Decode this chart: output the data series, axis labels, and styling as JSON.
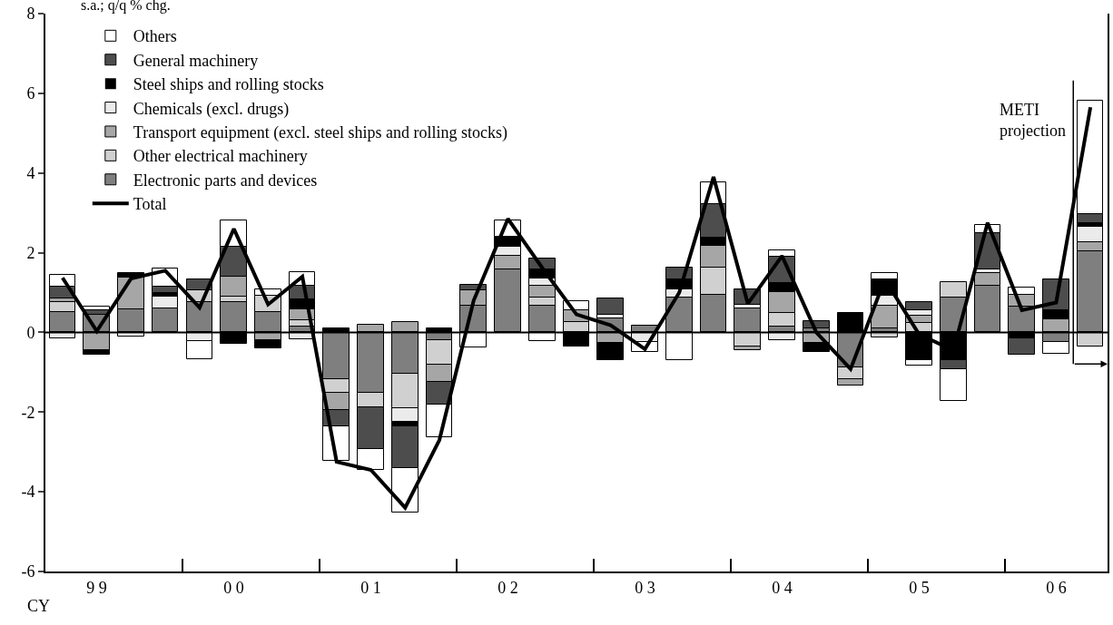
{
  "chart_data": {
    "type": "bar",
    "stacked": true,
    "ylabel": "s.a.; q/q % chg.",
    "xlabel": "CY",
    "categories": [
      null,
      "9 9",
      null,
      null,
      null,
      "0 0",
      null,
      null,
      null,
      "0 1",
      null,
      null,
      null,
      "0 2",
      null,
      null,
      null,
      "0 3",
      null,
      null,
      null,
      "0 4",
      null,
      null,
      null,
      "0 5",
      null,
      null,
      null,
      "0 6",
      null
    ],
    "annotations": [
      "METI\nprojection"
    ],
    "ylim": [
      -6,
      8
    ],
    "yticks": [
      -6,
      -4,
      -2,
      0,
      2,
      4,
      6,
      8
    ],
    "legend": "top left",
    "ref_lines": [
      {
        "axis": "y",
        "value": 0,
        "color": "#000000"
      }
    ],
    "series": [
      {
        "name": "Electronic parts and devices",
        "color": "#7f7f7f",
        "values": [
          0.5,
          0.45,
          0.57,
          0.6,
          0.75,
          0.75,
          0.52,
          0.15,
          -1.18,
          -1.52,
          -1.03,
          -0.2,
          0.68,
          1.58,
          0.68,
          0,
          0.35,
          0.18,
          0.87,
          0.94,
          0.6,
          0.15,
          0.1,
          -0.88,
          0.11,
          0,
          0.87,
          1.17,
          0.64,
          -0.24,
          2.03
        ]
      },
      {
        "name": "Other electrical machinery",
        "color": "#d0d0d0",
        "values": [
          0.25,
          0,
          0,
          0,
          0.3,
          0.15,
          0.4,
          0.15,
          -0.34,
          -0.35,
          -0.87,
          -0.6,
          0,
          0,
          0.19,
          0.26,
          0,
          0,
          0,
          0.68,
          -0.35,
          0.34,
          0,
          -0.3,
          -0.12,
          0.23,
          0.39,
          0,
          0,
          0,
          -0.35
        ]
      },
      {
        "name": "Transport equipment (excl. steel ships and rolling stocks)",
        "color": "#a6a6a6",
        "values": [
          0.1,
          -0.45,
          0.8,
          0,
          0,
          0.5,
          -0.2,
          0.27,
          -0.42,
          0.2,
          0.26,
          -0.45,
          0.37,
          0.35,
          0.29,
          0.3,
          -0.27,
          0,
          0,
          0.56,
          -0.1,
          0.53,
          -0.27,
          -0.16,
          0.57,
          0.19,
          0,
          0.31,
          0.3,
          0.33,
          0.24
        ]
      },
      {
        "name": "Chemicals (excl. drugs)",
        "color": "#ebebeb",
        "values": [
          -0.15,
          0,
          0,
          0.3,
          -0.22,
          0,
          0,
          -0.17,
          0,
          0,
          -0.35,
          0,
          0,
          0.23,
          0.2,
          0,
          0.1,
          -0.25,
          0.2,
          0,
          0.1,
          -0.2,
          0,
          0,
          0.23,
          0.14,
          0,
          0.1,
          0,
          0,
          0.38
        ]
      },
      {
        "name": "Steel ships and rolling stocks",
        "color": "#000000",
        "values": [
          0,
          -0.12,
          0.12,
          0.1,
          0,
          -0.28,
          -0.2,
          0.25,
          0.09,
          0,
          -0.1,
          0.1,
          0,
          0.23,
          0.21,
          -0.35,
          -0.42,
          0,
          0.25,
          0.19,
          0,
          0.23,
          -0.23,
          0.48,
          0.42,
          -0.69,
          -0.69,
          0,
          -0.16,
          0.23,
          0.1
        ]
      },
      {
        "name": "General machinery",
        "color": "#4d4d4d",
        "values": [
          0.3,
          0.1,
          0,
          0.15,
          0.27,
          0.75,
          0,
          0.35,
          -0.42,
          -1.05,
          -1.05,
          -0.57,
          0.15,
          0,
          0.28,
          0,
          0.4,
          0,
          0.3,
          0.84,
          0.38,
          0.65,
          0.19,
          0,
          0,
          0.19,
          -0.23,
          0.91,
          -0.41,
          0.76,
          0.23
        ]
      },
      {
        "name": "Others",
        "color": "#ffffff",
        "values": [
          0.3,
          0.1,
          -0.1,
          0.45,
          -0.45,
          0.65,
          0.15,
          0.35,
          -0.87,
          -0.53,
          -1.13,
          -0.8,
          -0.37,
          0.41,
          -0.21,
          0.23,
          0,
          -0.25,
          -0.69,
          0.56,
          0,
          0.15,
          0,
          0,
          0.16,
          -0.15,
          -0.8,
          0.2,
          0.19,
          -0.3,
          2.84
        ]
      },
      {
        "name": "Total",
        "type": "line",
        "color": "#000000",
        "values": [
          1.37,
          0.03,
          1.35,
          1.55,
          0.62,
          2.6,
          0.7,
          1.4,
          -3.25,
          -3.45,
          -4.4,
          -2.7,
          0.8,
          2.85,
          1.62,
          0.45,
          0.18,
          -0.42,
          1.0,
          3.9,
          0.72,
          1.92,
          0.0,
          -0.92,
          1.33,
          -0.05,
          -0.45,
          2.75,
          0.56,
          0.75,
          5.65
        ]
      }
    ]
  }
}
